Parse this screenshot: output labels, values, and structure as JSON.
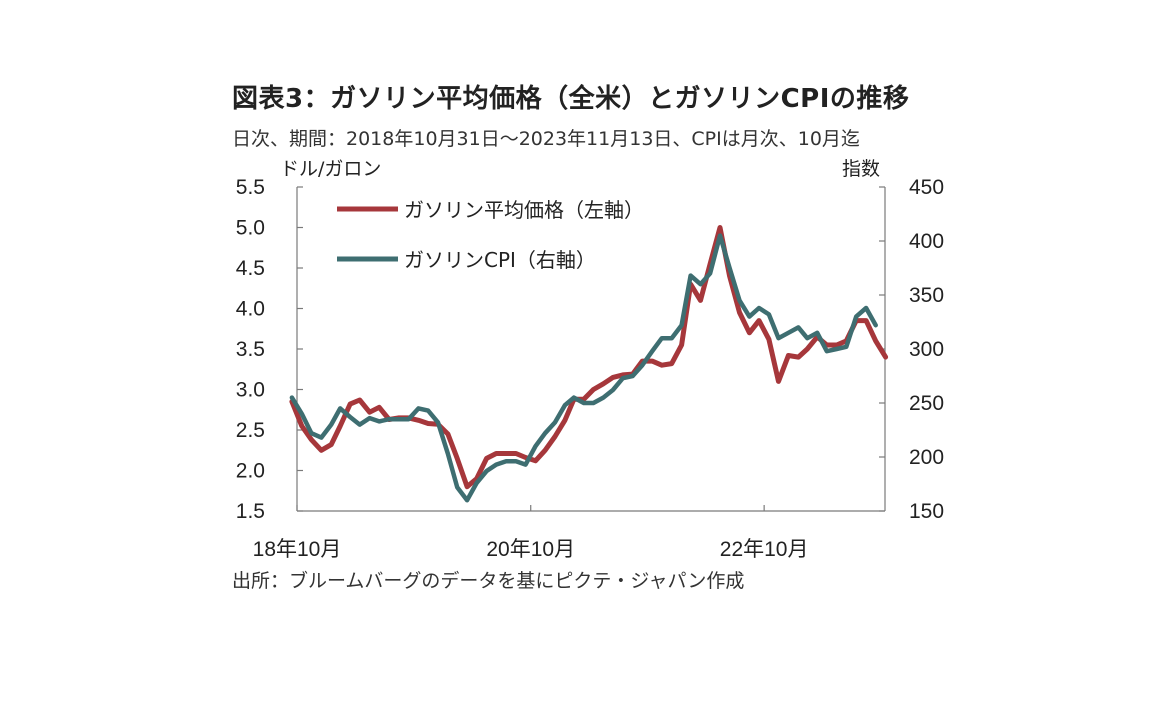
{
  "header": {
    "title": "図表3：ガソリン平均価格（全米）とガソリンCPIの推移",
    "subtitle": "日次、期間：2018年10月31日～2023年11月13日、CPIは月次、10月迄",
    "unit_left": "ドル/ガロン",
    "unit_right": "指数",
    "source": "出所：ブルームバーグのデータを基にピクテ・ジャパン作成"
  },
  "chart_data": {
    "type": "line",
    "title": "図表3：ガソリン平均価格（全米）とガソリンCPIの推移",
    "subtitle": "日次、期間：2018年10月31日～2023年11月13日、CPIは月次、10月迄",
    "xlabel": "",
    "ylabel_left": "ドル/ガロン",
    "ylabel_right": "指数",
    "x_tick_labels": [
      "18年10月",
      "20年10月",
      "22年10月"
    ],
    "y_left_ticks": [
      "5.5",
      "5.0",
      "4.5",
      "4.0",
      "3.5",
      "3.0",
      "2.5",
      "2.0",
      "1.5"
    ],
    "y_right_ticks": [
      "450",
      "400",
      "350",
      "300",
      "250",
      "200",
      "150"
    ],
    "ylim_left": [
      1.5,
      5.5
    ],
    "ylim_right": [
      150,
      450
    ],
    "xlim": [
      "2018-10",
      "2023-11"
    ],
    "grid": false,
    "legend_position": "top-left",
    "series": [
      {
        "name": "ガソリン平均価格（左軸）",
        "axis": "left",
        "color": "#a6373b",
        "x": [
          "2018-10",
          "2018-11",
          "2018-12",
          "2019-01",
          "2019-02",
          "2019-03",
          "2019-04",
          "2019-05",
          "2019-06",
          "2019-07",
          "2019-08",
          "2019-09",
          "2019-10",
          "2019-11",
          "2019-12",
          "2020-01",
          "2020-02",
          "2020-03",
          "2020-04",
          "2020-05",
          "2020-06",
          "2020-07",
          "2020-08",
          "2020-09",
          "2020-10",
          "2020-11",
          "2020-12",
          "2021-01",
          "2021-02",
          "2021-03",
          "2021-04",
          "2021-05",
          "2021-06",
          "2021-07",
          "2021-08",
          "2021-09",
          "2021-10",
          "2021-11",
          "2021-12",
          "2022-01",
          "2022-02",
          "2022-03",
          "2022-04",
          "2022-05",
          "2022-06",
          "2022-07",
          "2022-08",
          "2022-09",
          "2022-10",
          "2022-11",
          "2022-12",
          "2023-01",
          "2023-02",
          "2023-03",
          "2023-04",
          "2023-05",
          "2023-06",
          "2023-07",
          "2023-08",
          "2023-09",
          "2023-10",
          "2023-11"
        ],
        "values": [
          2.85,
          2.55,
          2.38,
          2.25,
          2.32,
          2.55,
          2.82,
          2.87,
          2.72,
          2.78,
          2.63,
          2.65,
          2.65,
          2.62,
          2.58,
          2.57,
          2.45,
          2.15,
          1.8,
          1.9,
          2.15,
          2.21,
          2.21,
          2.21,
          2.16,
          2.12,
          2.25,
          2.42,
          2.62,
          2.88,
          2.88,
          3.0,
          3.07,
          3.15,
          3.18,
          3.19,
          3.35,
          3.35,
          3.3,
          3.32,
          3.55,
          4.3,
          4.1,
          4.55,
          5.0,
          4.4,
          3.95,
          3.7,
          3.85,
          3.62,
          3.1,
          3.42,
          3.4,
          3.5,
          3.65,
          3.55,
          3.55,
          3.6,
          3.85,
          3.85,
          3.6,
          3.4
        ]
      },
      {
        "name": "ガソリンCPI（右軸）",
        "axis": "right",
        "color": "#3e6e71",
        "x": [
          "2018-10",
          "2018-11",
          "2018-12",
          "2019-01",
          "2019-02",
          "2019-03",
          "2019-04",
          "2019-05",
          "2019-06",
          "2019-07",
          "2019-08",
          "2019-09",
          "2019-10",
          "2019-11",
          "2019-12",
          "2020-01",
          "2020-02",
          "2020-03",
          "2020-04",
          "2020-05",
          "2020-06",
          "2020-07",
          "2020-08",
          "2020-09",
          "2020-10",
          "2020-11",
          "2020-12",
          "2021-01",
          "2021-02",
          "2021-03",
          "2021-04",
          "2021-05",
          "2021-06",
          "2021-07",
          "2021-08",
          "2021-09",
          "2021-10",
          "2021-11",
          "2021-12",
          "2022-01",
          "2022-02",
          "2022-03",
          "2022-04",
          "2022-05",
          "2022-06",
          "2022-07",
          "2022-08",
          "2022-09",
          "2022-10",
          "2022-11",
          "2022-12",
          "2023-01",
          "2023-02",
          "2023-03",
          "2023-04",
          "2023-05",
          "2023-06",
          "2023-07",
          "2023-08",
          "2023-09",
          "2023-10"
        ],
        "values": [
          255,
          240,
          222,
          218,
          230,
          245,
          237,
          230,
          236,
          233,
          235,
          235,
          235,
          245,
          243,
          232,
          203,
          172,
          160,
          176,
          187,
          193,
          196,
          196,
          193,
          210,
          222,
          232,
          248,
          255,
          250,
          250,
          255,
          262,
          273,
          275,
          285,
          298,
          310,
          310,
          322,
          368,
          360,
          370,
          405,
          375,
          345,
          330,
          338,
          332,
          310,
          315,
          320,
          310,
          315,
          298,
          300,
          302,
          330,
          338,
          322
        ]
      }
    ]
  }
}
